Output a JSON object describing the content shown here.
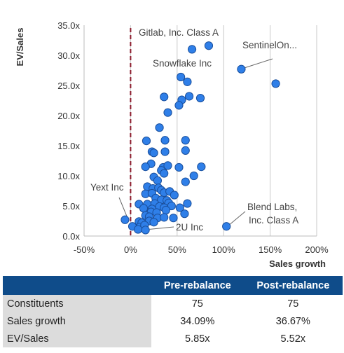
{
  "chart_data": {
    "type": "scatter",
    "xlabel": "Sales growth",
    "ylabel": "EV/Sales",
    "xlim": [
      -0.5,
      2.0
    ],
    "ylim": [
      0,
      35
    ],
    "x_ticks": [
      -0.5,
      0,
      0.5,
      1.0,
      1.5,
      2.0
    ],
    "x_tick_labels": [
      "-50%",
      "0%",
      "50%",
      "100%",
      "150%",
      "200%"
    ],
    "y_ticks": [
      0,
      5,
      10,
      15,
      20,
      25,
      30,
      35
    ],
    "y_tick_labels": [
      "0.0x",
      "5.0x",
      "10.0x",
      "15.0x",
      "20.0x",
      "25.0x",
      "30.0x",
      "35.0x"
    ],
    "grid": "vertical",
    "reference_line": {
      "x": 0,
      "style": "dashed",
      "color": "#8b1a2b"
    },
    "point_color": "#2f7fe8",
    "points": [
      {
        "x": 0.66,
        "y": 31.0
      },
      {
        "x": 0.84,
        "y": 31.6
      },
      {
        "x": 1.19,
        "y": 27.7
      },
      {
        "x": 1.56,
        "y": 25.3
      },
      {
        "x": 0.54,
        "y": 26.4
      },
      {
        "x": 0.61,
        "y": 25.6
      },
      {
        "x": 0.36,
        "y": 23.1
      },
      {
        "x": 0.55,
        "y": 22.6
      },
      {
        "x": 0.63,
        "y": 23.2
      },
      {
        "x": 0.75,
        "y": 22.9
      },
      {
        "x": 0.52,
        "y": 21.7
      },
      {
        "x": 0.4,
        "y": 20.5
      },
      {
        "x": 0.31,
        "y": 18.0
      },
      {
        "x": 0.17,
        "y": 15.8
      },
      {
        "x": 0.37,
        "y": 15.9
      },
      {
        "x": 0.59,
        "y": 15.9
      },
      {
        "x": 0.23,
        "y": 14.0
      },
      {
        "x": 0.25,
        "y": 13.8
      },
      {
        "x": 0.37,
        "y": 14.0
      },
      {
        "x": 0.59,
        "y": 14.2
      },
      {
        "x": 0.22,
        "y": 12.0
      },
      {
        "x": 0.16,
        "y": 11.5
      },
      {
        "x": 0.35,
        "y": 11.4
      },
      {
        "x": 0.4,
        "y": 11.7
      },
      {
        "x": 0.52,
        "y": 11.4
      },
      {
        "x": 0.76,
        "y": 11.5
      },
      {
        "x": 0.33,
        "y": 10.9
      },
      {
        "x": 0.36,
        "y": 10.4
      },
      {
        "x": 0.25,
        "y": 9.8
      },
      {
        "x": 0.29,
        "y": 9.2
      },
      {
        "x": 0.68,
        "y": 10.0
      },
      {
        "x": 0.59,
        "y": 9.0
      },
      {
        "x": 0.18,
        "y": 8.2
      },
      {
        "x": 0.24,
        "y": 7.9
      },
      {
        "x": 0.3,
        "y": 8.0
      },
      {
        "x": 0.33,
        "y": 7.6
      },
      {
        "x": 0.16,
        "y": 7.0
      },
      {
        "x": 0.23,
        "y": 7.1
      },
      {
        "x": 0.36,
        "y": 7.2
      },
      {
        "x": 0.42,
        "y": 7.4
      },
      {
        "x": 0.47,
        "y": 6.8
      },
      {
        "x": 0.27,
        "y": 6.3
      },
      {
        "x": 0.33,
        "y": 6.0
      },
      {
        "x": 0.39,
        "y": 5.9
      },
      {
        "x": 0.09,
        "y": 5.3
      },
      {
        "x": 0.18,
        "y": 5.3
      },
      {
        "x": 0.26,
        "y": 5.4
      },
      {
        "x": 0.41,
        "y": 5.5
      },
      {
        "x": 0.61,
        "y": 5.4
      },
      {
        "x": 0.14,
        "y": 4.6
      },
      {
        "x": 0.23,
        "y": 4.5
      },
      {
        "x": 0.31,
        "y": 4.9
      },
      {
        "x": 0.36,
        "y": 4.7
      },
      {
        "x": 0.44,
        "y": 5.0
      },
      {
        "x": 0.53,
        "y": 4.7
      },
      {
        "x": 0.22,
        "y": 4.0
      },
      {
        "x": 0.28,
        "y": 3.9
      },
      {
        "x": 0.38,
        "y": 4.3
      },
      {
        "x": 0.16,
        "y": 3.4
      },
      {
        "x": 0.2,
        "y": 3.2
      },
      {
        "x": 0.29,
        "y": 3.0
      },
      {
        "x": 0.36,
        "y": 3.1
      },
      {
        "x": 0.46,
        "y": 3.0
      },
      {
        "x": 0.58,
        "y": 3.7
      },
      {
        "x": -0.06,
        "y": 2.7
      },
      {
        "x": 0.09,
        "y": 2.4
      },
      {
        "x": 0.12,
        "y": 2.2
      },
      {
        "x": 0.2,
        "y": 2.5
      },
      {
        "x": 0.25,
        "y": 2.3
      },
      {
        "x": 0.02,
        "y": 1.6
      },
      {
        "x": 0.1,
        "y": 1.5
      },
      {
        "x": 0.15,
        "y": 1.8
      },
      {
        "x": 0.08,
        "y": 1.1
      },
      {
        "x": 0.16,
        "y": 1.0
      },
      {
        "x": 1.03,
        "y": 1.6
      }
    ],
    "annotations": [
      {
        "text": "Gitlab, Inc. Class A",
        "x": 0.66,
        "y": 31.0,
        "leader": false
      },
      {
        "text": "SentinelOn...",
        "x": 1.19,
        "y": 27.7,
        "leader": true
      },
      {
        "text": "Snowflake Inc",
        "x": 0.54,
        "y": 26.4,
        "leader": false
      },
      {
        "text": "Yext Inc",
        "x": -0.06,
        "y": 2.7,
        "leader": true
      },
      {
        "text": "2U Inc",
        "x": 0.16,
        "y": 1.0,
        "leader": true
      },
      {
        "text": "Blend Labs,",
        "x": 1.03,
        "y": 1.6,
        "leader": true
      },
      {
        "text": "Inc. Class A",
        "x": 1.03,
        "y": 1.6,
        "leader": false
      }
    ]
  },
  "table": {
    "headers": [
      "",
      "Pre-rebalance",
      "Post-rebalance"
    ],
    "rows": [
      {
        "label": "Constituents",
        "pre": "75",
        "post": "75"
      },
      {
        "label": "Sales growth",
        "pre": "34.09%",
        "post": "36.67%"
      },
      {
        "label": "EV/Sales",
        "pre": "5.85x",
        "post": "5.52x"
      }
    ]
  }
}
